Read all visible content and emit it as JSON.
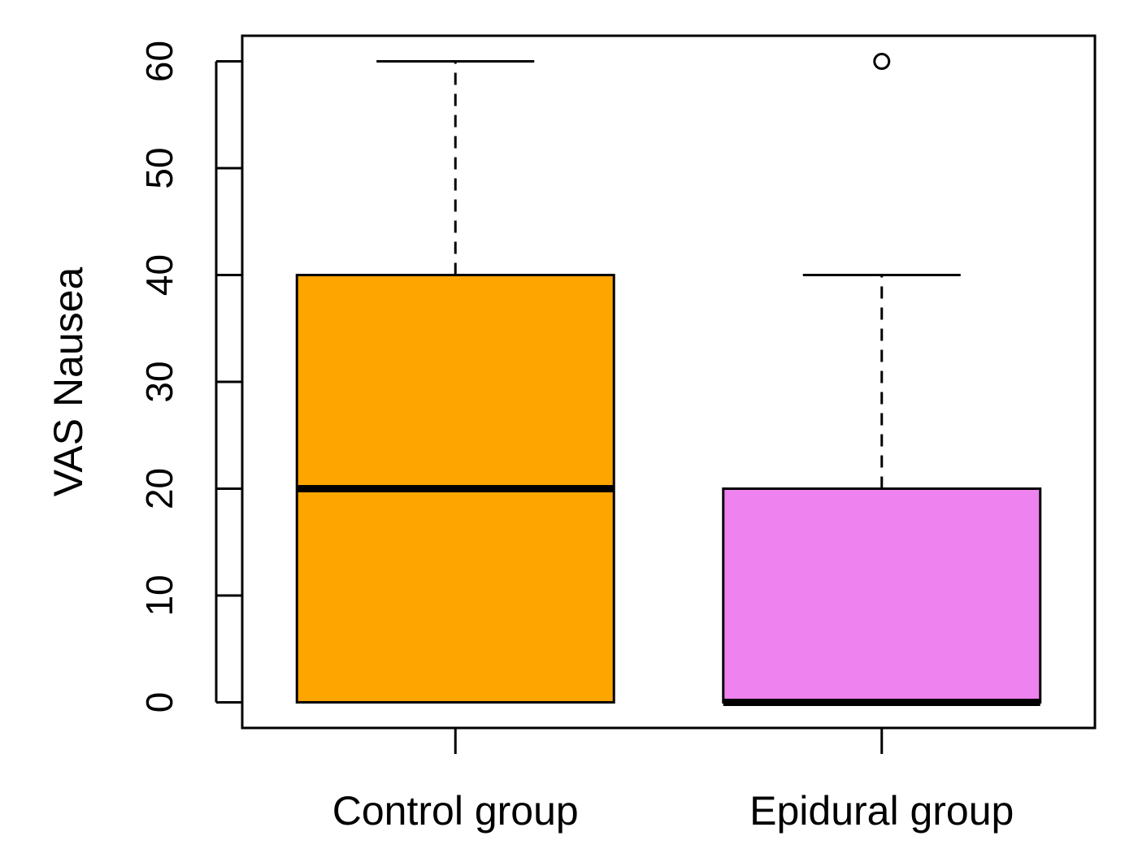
{
  "chart_data": {
    "type": "boxplot",
    "title": "",
    "xlabel": "",
    "ylabel": "VAS Nausea",
    "ylim": [
      -2.4,
      62.4
    ],
    "yticks": [
      0,
      10,
      20,
      30,
      40,
      50,
      60
    ],
    "grid": false,
    "categories": [
      "Control group",
      "Epidural group"
    ],
    "boxes": [
      {
        "name": "Control group",
        "whisker_low": 0,
        "q1": 0,
        "median": 20,
        "q3": 40,
        "whisker_high": 60,
        "outliers": [],
        "color": "#FFA500"
      },
      {
        "name": "Epidural group",
        "whisker_low": 0,
        "q1": 0,
        "median": 0,
        "q3": 20,
        "whisker_high": 40,
        "outliers": [
          60
        ],
        "color": "#EE82EE"
      }
    ]
  }
}
